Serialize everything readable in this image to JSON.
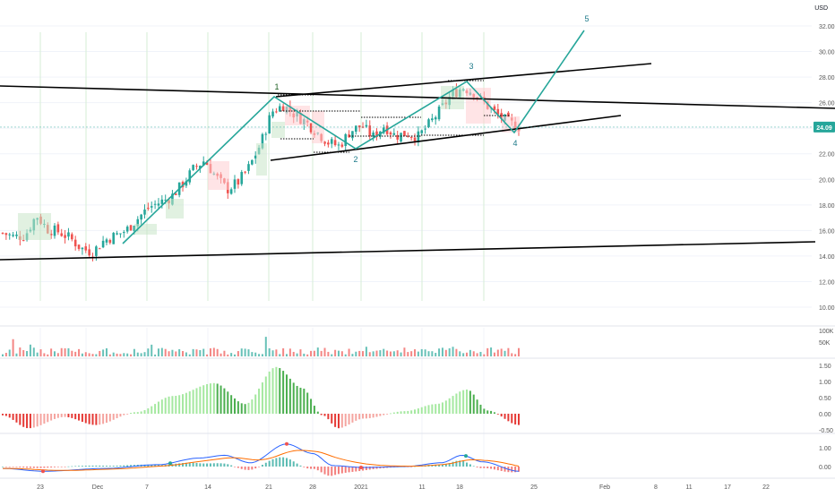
{
  "currency_label": "USD",
  "last_price_label": "24.09",
  "colors": {
    "up": "#26a69a",
    "down": "#ef5350",
    "hist_pos_strong": "#4caf50",
    "hist_pos_light": "#a5e8a0",
    "hist_neg_strong": "#e53935",
    "hist_neg_light": "#f5a5a0",
    "macd_line": "#2962ff",
    "signal_line": "#ff6d00",
    "wave_line": "#26a69a",
    "trend_line": "#000000",
    "grid": "#f0f3fa",
    "session_line": "#d6ecd6",
    "price_tag_bg": "#26a69a"
  },
  "price_axis": {
    "labels": [
      "32.00",
      "30.00",
      "28.00",
      "26.00",
      "24.00",
      "22.00",
      "20.00",
      "18.00",
      "16.00",
      "14.00",
      "12.00",
      "10.00"
    ]
  },
  "volume_axis": {
    "labels": [
      "100K",
      "50K"
    ]
  },
  "osc_axis": {
    "labels": [
      "1.50",
      "1.00",
      "0.50",
      "0.00",
      "-0.50"
    ]
  },
  "macd_axis": {
    "labels": [
      "1.00",
      "0.00"
    ]
  },
  "time_axis": {
    "labels": [
      "23",
      "Dec",
      "7",
      "14",
      "21",
      "28",
      "2021",
      "11",
      "18",
      "25",
      "Feb",
      "8",
      "11",
      "17",
      "22"
    ]
  },
  "wave_labels": [
    "1",
    "2",
    "3",
    "4",
    "5"
  ],
  "chart_data": {
    "type": "candlestick",
    "symbol_currency": "USD",
    "last_price": 24.09,
    "ylim": [
      10,
      32
    ],
    "annotations": {
      "elliott_wave_points": [
        {
          "label": "1",
          "price": 26.5
        },
        {
          "label": "2",
          "price": 22.3
        },
        {
          "label": "3",
          "price": 27.8
        },
        {
          "label": "4",
          "price": 23.6
        },
        {
          "label": "5",
          "price": 31.6
        }
      ]
    },
    "price_path": [
      15.8,
      15.5,
      15.6,
      17.2,
      16.1,
      15.9,
      15.4,
      14.6,
      14.3,
      15.2,
      15.6,
      16.0,
      16.9,
      17.8,
      18.2,
      18.6,
      19.6,
      20.8,
      21.5,
      20.2,
      19.2,
      19.8,
      21.0,
      22.8,
      25.3,
      25.8,
      25.1,
      24.5,
      23.7,
      22.9,
      22.6,
      23.8,
      24.2,
      23.3,
      24.2,
      23.4,
      23.6,
      23.3,
      24.3,
      25.4,
      26.6,
      27.2,
      26.8,
      25.9,
      25.1,
      24.5,
      24.1
    ],
    "volume_max_label": "100K",
    "oscillator_range": [
      -0.5,
      1.5
    ],
    "macd_range": [
      -0.3,
      1.2
    ]
  }
}
